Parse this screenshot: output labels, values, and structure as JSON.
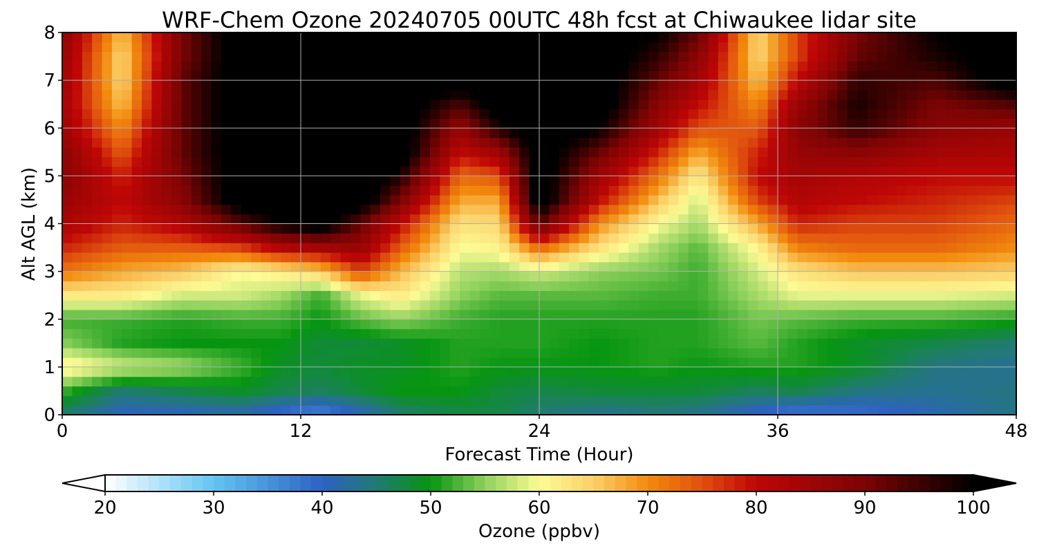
{
  "chart_data": {
    "type": "heatmap",
    "title": "WRF-Chem Ozone  20240705 00UTC 48h fcst at Chiwaukee lidar site",
    "xlabel": "Forecast Time (Hour)",
    "ylabel": "Alt AGL (km)",
    "xlim": [
      0,
      48
    ],
    "ylim": [
      0,
      8
    ],
    "x_ticks": [
      "0",
      "12",
      "24",
      "36",
      "48"
    ],
    "y_ticks": [
      "0",
      "1",
      "2",
      "3",
      "4",
      "5",
      "6",
      "7",
      "8"
    ],
    "grid": true,
    "x": [
      0,
      3,
      6,
      9,
      11,
      13,
      15,
      17,
      20,
      22,
      24,
      27,
      30,
      32,
      35,
      37,
      40,
      44,
      48
    ],
    "y": [
      0,
      0.5,
      1,
      1.5,
      2,
      2.5,
      3,
      3.5,
      4,
      4.5,
      5,
      5.5,
      6,
      6.5,
      7,
      7.5,
      8
    ],
    "values": [
      [
        45,
        40,
        40,
        41,
        38,
        36,
        40,
        45,
        47,
        47,
        45,
        43,
        44,
        43,
        39,
        37,
        38,
        41,
        44
      ],
      [
        52,
        45,
        47,
        49,
        47,
        46,
        48,
        50,
        50,
        48,
        47,
        48,
        48,
        48,
        46,
        47,
        44,
        43,
        44
      ],
      [
        62,
        58,
        56,
        52,
        49,
        48,
        49,
        49,
        51,
        50,
        50,
        50,
        51,
        50,
        51,
        51,
        49,
        44,
        43
      ],
      [
        55,
        51,
        50,
        50,
        50,
        48,
        48,
        49,
        51,
        51,
        51,
        50,
        51,
        51,
        53,
        51,
        49,
        47,
        45
      ],
      [
        52,
        52,
        51,
        52,
        52,
        50,
        53,
        55,
        52,
        51,
        51,
        51,
        51,
        51,
        54,
        53,
        52,
        52,
        51
      ],
      [
        62,
        62,
        58,
        58,
        56,
        52,
        59,
        62,
        55,
        53,
        53,
        53,
        52,
        52,
        56,
        59,
        59,
        59,
        58
      ],
      [
        72,
        68,
        66,
        60,
        62,
        65,
        76,
        67,
        57,
        56,
        58,
        55,
        54,
        52,
        58,
        63,
        66,
        66,
        65
      ],
      [
        78,
        74,
        74,
        76,
        82,
        84,
        86,
        74,
        60,
        61,
        73,
        63,
        56,
        53,
        61,
        71,
        73,
        73,
        70
      ],
      [
        83,
        78,
        82,
        93,
        100,
        104,
        92,
        80,
        63,
        64,
        93,
        70,
        60,
        56,
        68,
        78,
        76,
        76,
        73
      ],
      [
        86,
        80,
        88,
        104,
        104,
        104,
        104,
        90,
        68,
        68,
        104,
        80,
        66,
        58,
        76,
        82,
        80,
        78,
        76
      ],
      [
        88,
        78,
        90,
        104,
        104,
        104,
        104,
        98,
        73,
        75,
        104,
        85,
        72,
        62,
        80,
        84,
        82,
        80,
        80
      ],
      [
        88,
        74,
        92,
        104,
        104,
        104,
        104,
        104,
        80,
        85,
        104,
        92,
        78,
        68,
        78,
        86,
        88,
        84,
        83
      ],
      [
        85,
        70,
        92,
        104,
        104,
        104,
        104,
        104,
        86,
        98,
        104,
        100,
        84,
        75,
        74,
        88,
        96,
        88,
        86
      ],
      [
        84,
        66,
        92,
        104,
        104,
        104,
        104,
        104,
        94,
        104,
        104,
        104,
        88,
        80,
        70,
        86,
        98,
        90,
        94
      ],
      [
        85,
        64,
        92,
        104,
        104,
        104,
        104,
        104,
        104,
        104,
        104,
        104,
        92,
        84,
        66,
        80,
        96,
        94,
        104
      ],
      [
        86,
        64,
        90,
        104,
        104,
        104,
        104,
        104,
        104,
        104,
        104,
        104,
        96,
        88,
        64,
        76,
        92,
        98,
        104
      ],
      [
        88,
        66,
        90,
        104,
        104,
        104,
        104,
        104,
        104,
        104,
        104,
        104,
        100,
        92,
        64,
        76,
        90,
        100,
        104
      ]
    ],
    "colorbar": {
      "label": "Ozone  (ppbv)",
      "min": 20,
      "max": 100,
      "ticks": [
        "20",
        "30",
        "40",
        "50",
        "60",
        "70",
        "80",
        "90",
        "100"
      ],
      "extend": "both",
      "stops": [
        {
          "v": 20,
          "c": "#ffffff"
        },
        {
          "v": 30,
          "c": "#64c4f2"
        },
        {
          "v": 40,
          "c": "#2d62c2"
        },
        {
          "v": 45,
          "c": "#217a72"
        },
        {
          "v": 50,
          "c": "#079511"
        },
        {
          "v": 55,
          "c": "#8fd15d"
        },
        {
          "v": 60,
          "c": "#fcfb95"
        },
        {
          "v": 65,
          "c": "#fbd069"
        },
        {
          "v": 70,
          "c": "#f28b0d"
        },
        {
          "v": 75,
          "c": "#e0500e"
        },
        {
          "v": 80,
          "c": "#be0606"
        },
        {
          "v": 90,
          "c": "#7d0404"
        },
        {
          "v": 100,
          "c": "#000000"
        }
      ]
    }
  }
}
